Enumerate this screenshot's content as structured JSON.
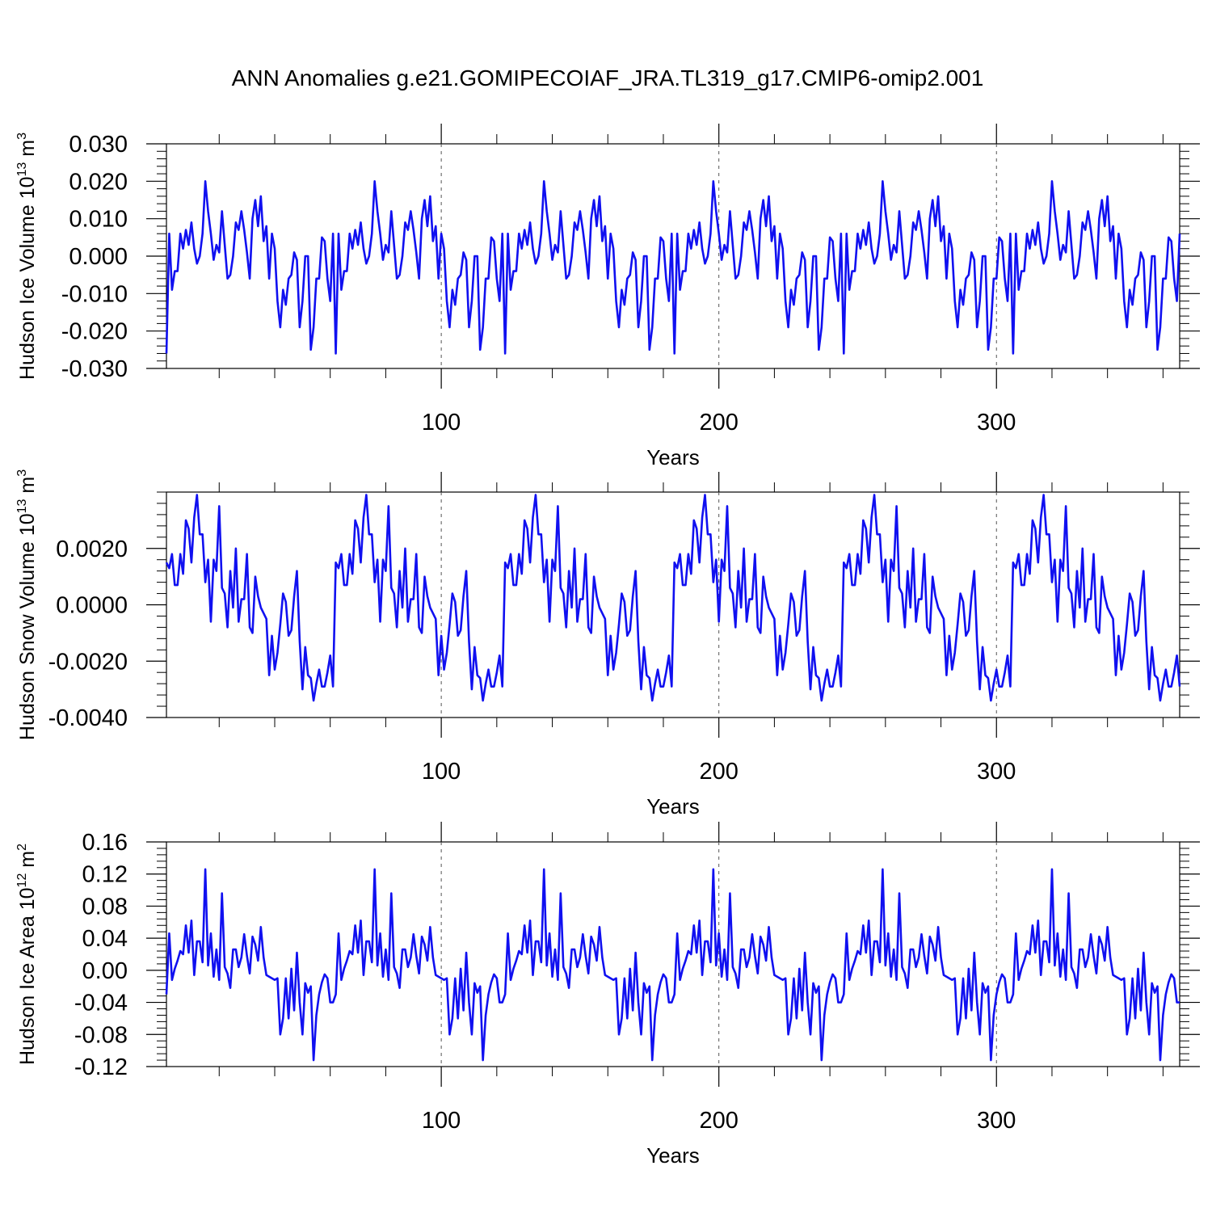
{
  "title": "ANN Anomalies g.e21.GOMIPECOIAF_JRA.TL319_g17.CMIP6-omip2.001",
  "line_color": "#1010f0",
  "chart_data": [
    {
      "type": "line",
      "xlabel": "Years",
      "ylabel_prefix": "Hudson Ice Volume 10",
      "ylabel_exp": "13",
      "ylabel_unit": " m",
      "ylabel_unit_exp": "3",
      "ylim": [
        -0.03,
        0.03
      ],
      "yticks": [
        {
          "value": -0.03,
          "label": "-0.030"
        },
        {
          "value": -0.02,
          "label": "-0.020"
        },
        {
          "value": -0.01,
          "label": "-0.010"
        },
        {
          "value": 0.0,
          "label": "0.000"
        },
        {
          "value": 0.01,
          "label": "0.010"
        },
        {
          "value": 0.02,
          "label": "0.020"
        },
        {
          "value": 0.03,
          "label": "0.030"
        }
      ],
      "xlim": [
        1,
        366
      ],
      "xticks": [
        {
          "value": 100,
          "label": "100"
        },
        {
          "value": 200,
          "label": "200"
        },
        {
          "value": 300,
          "label": "300"
        }
      ],
      "cycle_length": 61,
      "cycle": [
        -0.026,
        0.006,
        -0.009,
        -0.004,
        -0.004,
        0.006,
        0.002,
        0.007,
        0.003,
        0.009,
        0.002,
        -0.002,
        0.0,
        0.006,
        0.02,
        0.012,
        0.006,
        -0.001,
        0.003,
        0.001,
        0.012,
        0.003,
        -0.006,
        -0.005,
        0.0,
        0.009,
        0.007,
        0.012,
        0.007,
        0.001,
        -0.006,
        0.01,
        0.015,
        0.008,
        0.016,
        0.004,
        0.008,
        -0.006,
        0.006,
        0.002,
        -0.012,
        -0.019,
        -0.009,
        -0.013,
        -0.006,
        -0.005,
        0.001,
        -0.001,
        -0.019,
        -0.012,
        0.0,
        0.0,
        -0.025,
        -0.019,
        -0.006,
        -0.006,
        0.005,
        0.004,
        -0.006,
        -0.012,
        0.006
      ]
    },
    {
      "type": "line",
      "xlabel": "Years",
      "ylabel_prefix": "Hudson Snow Volume 10",
      "ylabel_exp": "13",
      "ylabel_unit": " m",
      "ylabel_unit_exp": "3",
      "ylim": [
        -0.004,
        0.004
      ],
      "yticks": [
        {
          "value": -0.004,
          "label": "-0.0040"
        },
        {
          "value": -0.002,
          "label": "-0.0020"
        },
        {
          "value": 0.0,
          "label": "0.0000"
        },
        {
          "value": 0.002,
          "label": "0.0020"
        }
      ],
      "xlim": [
        1,
        366
      ],
      "xticks": [
        {
          "value": 100,
          "label": "100"
        },
        {
          "value": 200,
          "label": "200"
        },
        {
          "value": 300,
          "label": "300"
        }
      ],
      "cycle_length": 61,
      "cycle": [
        0.0015,
        0.0013,
        0.0018,
        0.0007,
        0.0007,
        0.0018,
        0.0011,
        0.003,
        0.0027,
        0.0015,
        0.0031,
        0.0039,
        0.0025,
        0.0025,
        0.0008,
        0.0016,
        -0.0006,
        0.0016,
        0.0012,
        0.0035,
        0.0006,
        0.0004,
        -0.0008,
        0.0012,
        -0.0001,
        0.002,
        -0.0006,
        0.0002,
        0.0002,
        0.0018,
        -0.0008,
        -0.001,
        0.001,
        0.0003,
        -0.0001,
        -0.0003,
        -0.0005,
        -0.0025,
        -0.0011,
        -0.0023,
        -0.0017,
        -0.0007,
        0.0004,
        0.0001,
        -0.0011,
        -0.0009,
        0.0003,
        0.0012,
        -0.0013,
        -0.003,
        -0.0015,
        -0.0025,
        -0.0026,
        -0.0034,
        -0.0028,
        -0.0023,
        -0.0029,
        -0.0029,
        -0.0024,
        -0.0018,
        -0.0029
      ]
    },
    {
      "type": "line",
      "xlabel": "Years",
      "ylabel_prefix": "Hudson Ice Area 10",
      "ylabel_exp": "12",
      "ylabel_unit": " m",
      "ylabel_unit_exp": "2",
      "ylim": [
        -0.12,
        0.16
      ],
      "yticks": [
        {
          "value": -0.12,
          "label": "-0.12"
        },
        {
          "value": -0.08,
          "label": "-0.08"
        },
        {
          "value": -0.04,
          "label": "-0.04"
        },
        {
          "value": 0.0,
          "label": "0.00"
        },
        {
          "value": 0.04,
          "label": "0.04"
        },
        {
          "value": 0.08,
          "label": "0.08"
        },
        {
          "value": 0.12,
          "label": "0.12"
        },
        {
          "value": 0.16,
          "label": "0.16"
        }
      ],
      "xlim": [
        1,
        366
      ],
      "xticks": [
        {
          "value": 100,
          "label": "100"
        },
        {
          "value": 200,
          "label": "200"
        },
        {
          "value": 300,
          "label": "300"
        }
      ],
      "cycle_length": 61,
      "cycle": [
        -0.03,
        0.046,
        -0.012,
        0.002,
        0.012,
        0.024,
        0.02,
        0.056,
        0.022,
        0.062,
        -0.006,
        0.036,
        0.036,
        0.01,
        0.126,
        0.006,
        0.046,
        -0.008,
        0.026,
        -0.012,
        0.096,
        0.004,
        -0.004,
        -0.022,
        0.026,
        0.026,
        0.004,
        0.016,
        0.045,
        0.018,
        -0.004,
        0.042,
        0.032,
        0.012,
        0.054,
        0.016,
        -0.006,
        -0.008,
        -0.01,
        -0.012,
        -0.01,
        -0.08,
        -0.06,
        -0.01,
        -0.06,
        0.002,
        -0.05,
        0.022,
        -0.04,
        -0.08,
        -0.016,
        -0.028,
        -0.02,
        -0.112,
        -0.056,
        -0.03,
        -0.015,
        -0.005,
        -0.01,
        -0.04,
        -0.04
      ]
    }
  ]
}
